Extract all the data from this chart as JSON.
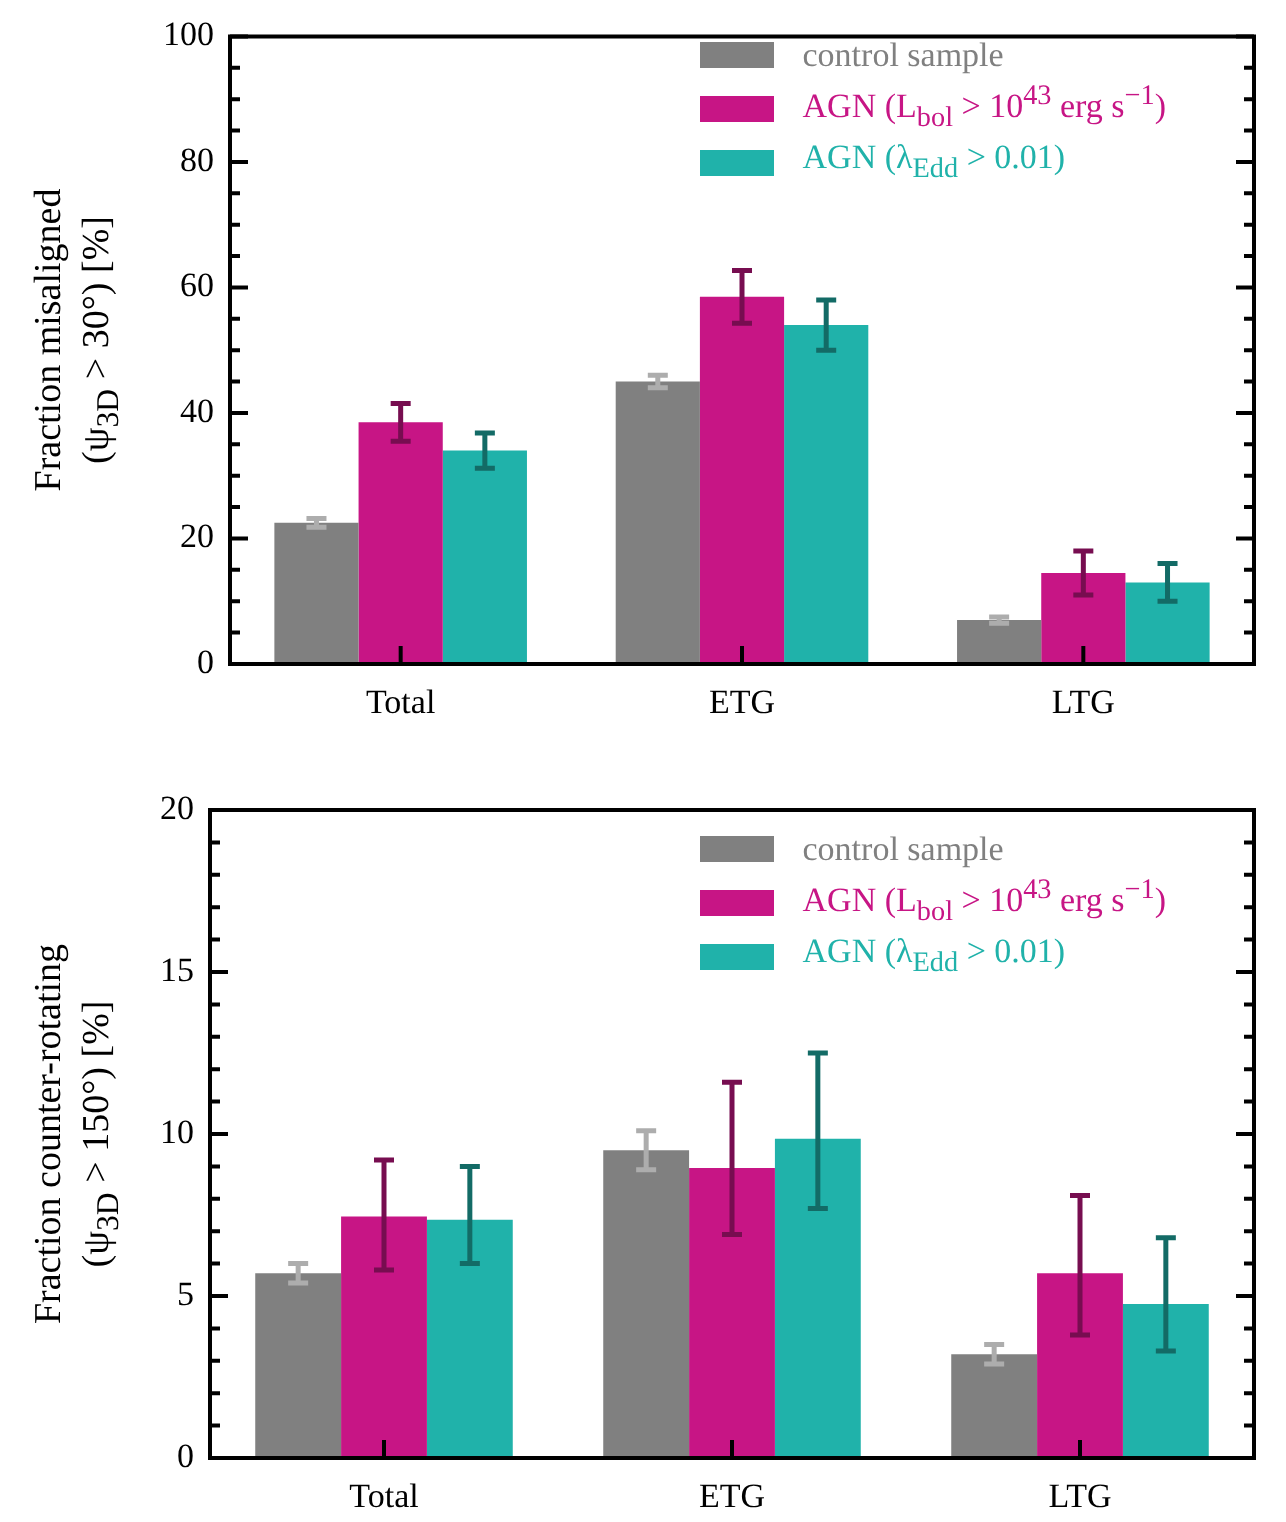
{
  "chart_data": [
    {
      "type": "bar",
      "ylabel": "Fraction misaligned\n(ψ$_{3D}$ > 30°) [%]",
      "categories": [
        "Total",
        "ETG",
        "LTG"
      ],
      "series": [
        {
          "name": "control sample",
          "color": "#808080",
          "values": [
            22.5,
            45,
            7
          ],
          "errors": [
            0.7,
            1,
            0.5
          ]
        },
        {
          "name": "AGN (L$_{bol}$ > 10$^{43}$ erg s$^{−1}$)",
          "color": "#c71585",
          "values": [
            38.5,
            58.5,
            14.5
          ],
          "errors": [
            3,
            4.2,
            3.5
          ]
        },
        {
          "name": "AGN (λ$_{Edd}$ > 0.01)",
          "color": "#20b2aa",
          "values": [
            34,
            54,
            13
          ],
          "errors": [
            2.8,
            4,
            3
          ]
        }
      ],
      "ylim": [
        0,
        100
      ],
      "yticks": [
        0,
        {
          "value": 5,
          "label": null
        },
        {
          "value": 10,
          "label": null
        },
        {
          "value": 15,
          "label": null
        },
        20,
        {
          "value": 25,
          "label": null
        },
        {
          "value": 30,
          "label": null
        },
        {
          "value": 35,
          "label": null
        },
        40,
        {
          "value": 45,
          "label": null
        },
        {
          "value": 50,
          "label": null
        },
        {
          "value": 55,
          "label": null
        },
        60,
        {
          "value": 65,
          "label": null
        },
        {
          "value": 70,
          "label": null
        },
        {
          "value": 75,
          "label": null
        },
        80,
        {
          "value": 85,
          "label": null
        },
        {
          "value": 90,
          "label": null
        },
        {
          "value": 95,
          "label": null
        },
        100
      ],
      "grid": false,
      "legend": "top right"
    },
    {
      "type": "bar",
      "ylabel": "Fraction counter-rotating\n(ψ$_{3D}$ > 150°) [%]",
      "categories": [
        "Total",
        "ETG",
        "LTG"
      ],
      "series": [
        {
          "name": "control sample",
          "color": "#808080",
          "values": [
            5.7,
            9.5,
            3.2
          ],
          "errors": [
            0.3,
            0.6,
            0.3
          ]
        },
        {
          "name": "AGN (L$_{bol}$ > 10$^{43}$ erg s$^{−1}$)",
          "color": "#c71585",
          "values": [
            7.45,
            8.95,
            5.7
          ],
          "errors": [
            [
              5.8,
              9.2
            ],
            [
              6.9,
              11.6
            ],
            [
              3.8,
              8.1
            ]
          ]
        },
        {
          "name": "AGN (λ$_{Edd}$ > 0.01)",
          "color": "#20b2aa",
          "values": [
            7.35,
            9.85,
            4.75
          ],
          "errors": [
            [
              6,
              9
            ],
            [
              7.7,
              12.5
            ],
            [
              3.3,
              6.8
            ]
          ]
        }
      ],
      "ylim": [
        0,
        20
      ],
      "yticks": [
        0,
        {
          "value": 1,
          "label": null
        },
        {
          "value": 2,
          "label": null
        },
        {
          "value": 3,
          "label": null
        },
        {
          "value": 4,
          "label": null
        },
        5,
        {
          "value": 6,
          "label": null
        },
        {
          "value": 7,
          "label": null
        },
        {
          "value": 8,
          "label": null
        },
        {
          "value": 9,
          "label": null
        },
        10,
        {
          "value": 11,
          "label": null
        },
        {
          "value": 12,
          "label": null
        },
        {
          "value": 13,
          "label": null
        },
        {
          "value": 14,
          "label": null
        },
        15,
        {
          "value": 16,
          "label": null
        },
        {
          "value": 17,
          "label": null
        },
        {
          "value": 18,
          "label": null
        },
        {
          "value": 19,
          "label": null
        },
        20
      ],
      "grid": false,
      "legend": "top right"
    }
  ]
}
